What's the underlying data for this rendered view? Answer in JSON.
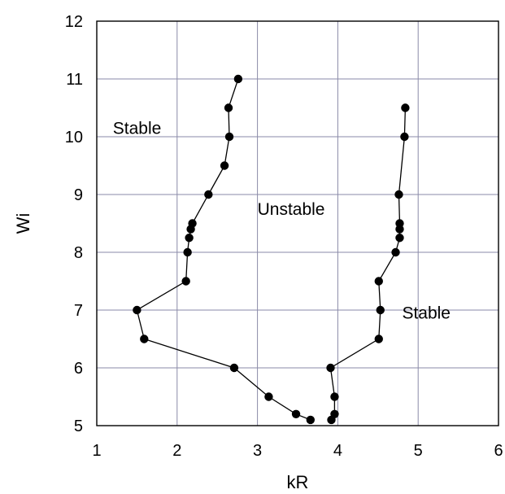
{
  "chart_data": {
    "type": "line",
    "xlabel": "kR",
    "ylabel": "Wi",
    "xlim": [
      1,
      6
    ],
    "ylim": [
      5,
      12
    ],
    "xticks": [
      1,
      2,
      3,
      4,
      5,
      6
    ],
    "yticks": [
      5,
      6,
      7,
      8,
      9,
      10,
      11,
      12
    ],
    "grid": true,
    "legend": "none",
    "series": [
      {
        "points": [
          [
            2.76,
            11.0
          ],
          [
            2.64,
            10.5
          ],
          [
            2.65,
            10.0
          ],
          [
            2.59,
            9.5
          ],
          [
            2.39,
            9.0
          ],
          [
            2.19,
            8.5
          ],
          [
            2.17,
            8.4
          ],
          [
            2.15,
            8.25
          ],
          [
            2.13,
            8.0
          ],
          [
            2.11,
            7.5
          ],
          [
            1.5,
            7.0
          ],
          [
            1.59,
            6.5
          ],
          [
            2.71,
            6.0
          ],
          [
            3.14,
            5.5
          ],
          [
            3.48,
            5.2
          ],
          [
            3.66,
            5.1
          ]
        ],
        "color": "#000000"
      },
      {
        "points": [
          [
            4.84,
            10.5
          ],
          [
            4.83,
            10.0
          ],
          [
            4.76,
            9.0
          ],
          [
            4.77,
            8.5
          ],
          [
            4.77,
            8.4
          ],
          [
            4.77,
            8.25
          ],
          [
            4.72,
            8.0
          ],
          [
            4.51,
            7.5
          ],
          [
            4.53,
            7.0
          ],
          [
            4.51,
            6.5
          ],
          [
            3.91,
            6.0
          ],
          [
            3.96,
            5.5
          ],
          [
            3.96,
            5.2
          ],
          [
            3.92,
            5.1
          ]
        ],
        "color": "#000000"
      }
    ],
    "annotations": [
      {
        "text": "Stable",
        "x": 1.2,
        "y": 10.05
      },
      {
        "text": "Unstable",
        "x": 3.0,
        "y": 8.65
      },
      {
        "text": "Stable",
        "x": 4.8,
        "y": 6.85
      }
    ]
  }
}
